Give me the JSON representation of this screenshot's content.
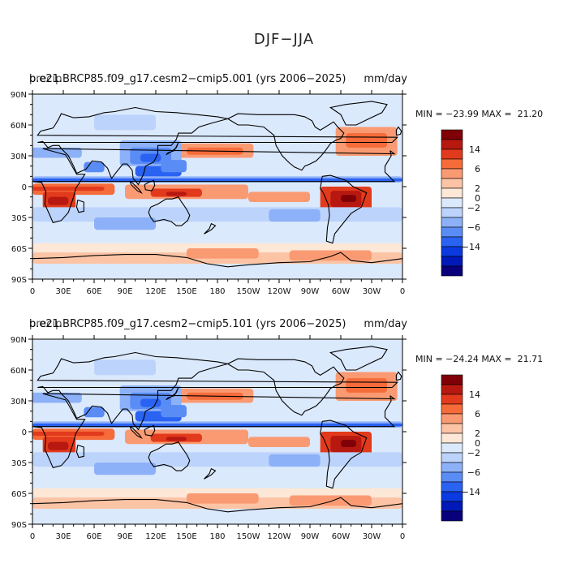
{
  "title": "DJF−JJA",
  "colors": {
    "palette": [
      "#08007a",
      "#0019b8",
      "#0a3ae0",
      "#2a62f2",
      "#5a8cf6",
      "#8db1f8",
      "#bcd3fb",
      "#dbe9fd",
      "#fde7d6",
      "#fcc4a5",
      "#fa9a72",
      "#f56b3a",
      "#e23a1c",
      "#b71810",
      "#7f0007"
    ],
    "coastline": "#000000",
    "land_background": "#dbe9fd"
  },
  "chart_data": [
    {
      "type": "heatmap",
      "header_left_a": "b.e21.BRCP85.f09_g17.cesm2−cmip5.001 (yrs 2006−2025)",
      "header_left_b": "precip",
      "header_right": "mm/day",
      "stats_text": "MIN = −23.99 MAX =  21.20",
      "min": -23.99,
      "max": 21.2,
      "x_tick_labels": [
        "0",
        "30E",
        "60E",
        "90E",
        "120E",
        "150E",
        "180",
        "150W",
        "120W",
        "90W",
        "60W",
        "30W",
        "0"
      ],
      "y_tick_labels": [
        "90N",
        "60N",
        "30N",
        "0",
        "30S",
        "60S",
        "90S"
      ],
      "xlim": [
        0,
        360
      ],
      "ylim": [
        -90,
        90
      ],
      "colorbar_labels": [
        "14",
        "6",
        "2",
        "0",
        "−2",
        "−6",
        "−14"
      ]
    },
    {
      "type": "heatmap",
      "header_left_a": "b.e21.BRCP85.f09_g17.cesm2−cmip5.101 (yrs 2006−2025)",
      "header_left_b": "precip",
      "header_right": "mm/day",
      "stats_text": "MIN = −24.24 MAX =  21.71",
      "min": -24.24,
      "max": 21.71,
      "x_tick_labels": [
        "0",
        "30E",
        "60E",
        "90E",
        "120E",
        "150E",
        "180",
        "150W",
        "120W",
        "90W",
        "60W",
        "30W",
        "0"
      ],
      "y_tick_labels": [
        "90N",
        "60N",
        "30N",
        "0",
        "30S",
        "60S",
        "90S"
      ],
      "xlim": [
        0,
        360
      ],
      "ylim": [
        -90,
        90
      ],
      "colorbar_labels": [
        "14",
        "6",
        "2",
        "0",
        "−2",
        "−6",
        "−14"
      ]
    }
  ]
}
